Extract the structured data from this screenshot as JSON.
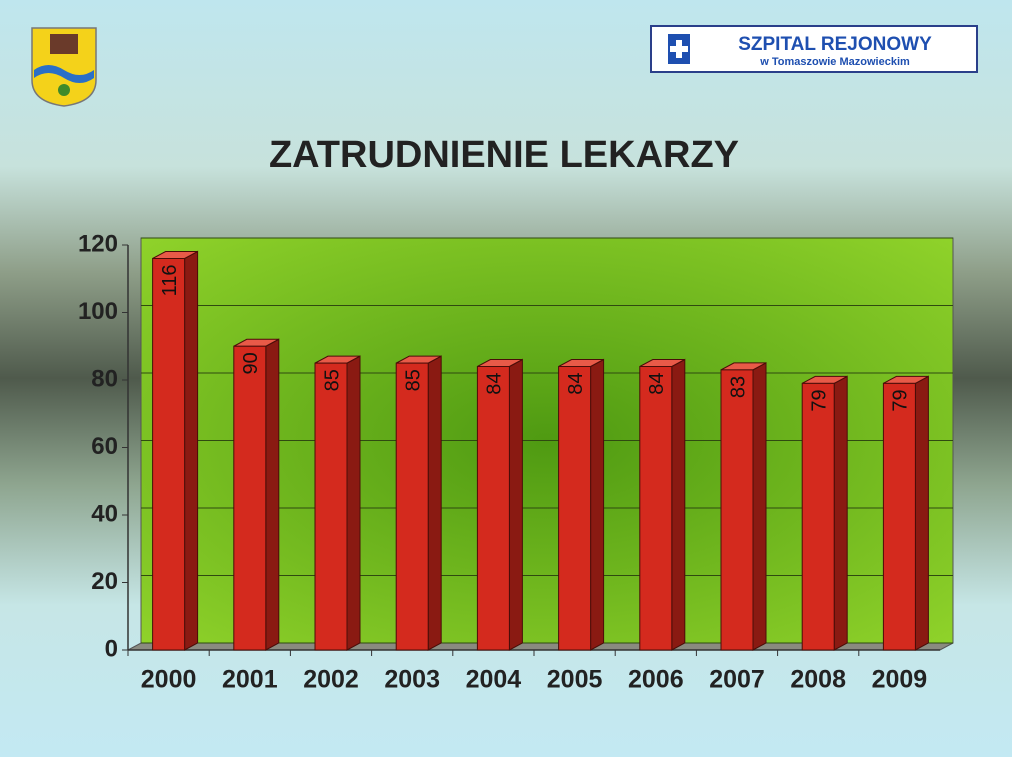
{
  "header": {
    "logo_title": "SZPITAL REJONOWY",
    "logo_subtitle": "w Tomaszowie Mazowieckim"
  },
  "chart_data": {
    "type": "bar",
    "title": "ZATRUDNIENIE LEKARZY",
    "categories": [
      "2000",
      "2001",
      "2002",
      "2003",
      "2004",
      "2005",
      "2006",
      "2007",
      "2008",
      "2009"
    ],
    "values": [
      116,
      90,
      85,
      85,
      84,
      84,
      84,
      83,
      79,
      79
    ],
    "color": "#d42a1e",
    "ylim": [
      0,
      120
    ],
    "yticks": [
      0,
      20,
      40,
      60,
      80,
      100,
      120
    ],
    "grid": true
  }
}
